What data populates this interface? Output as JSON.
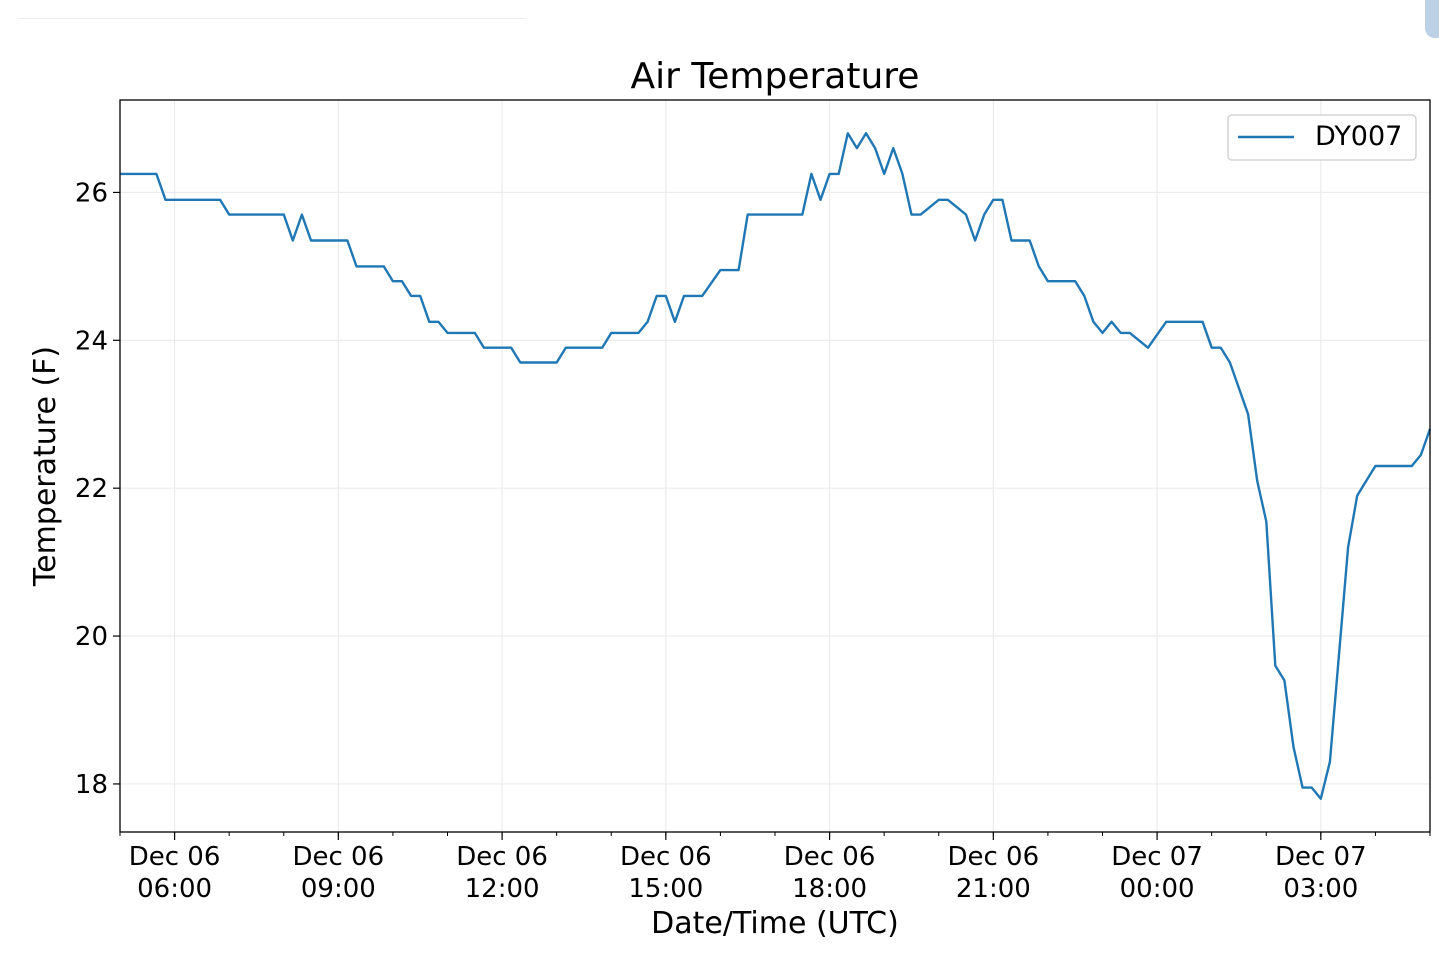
{
  "chart_data": {
    "type": "line",
    "title": "Air Temperature",
    "xlabel": "Date/Time (UTC)",
    "ylabel": "Temperature (F)",
    "xlim": [
      "2023-12-06T05:00",
      "2023-12-07T05:00"
    ],
    "ylim": [
      17.35,
      27.25
    ],
    "yticks": [
      18,
      20,
      22,
      24,
      26
    ],
    "xticks": [
      {
        "t": "2023-12-06T06:00",
        "label1": "Dec 06",
        "label2": "06:00"
      },
      {
        "t": "2023-12-06T09:00",
        "label1": "Dec 06",
        "label2": "09:00"
      },
      {
        "t": "2023-12-06T12:00",
        "label1": "Dec 06",
        "label2": "12:00"
      },
      {
        "t": "2023-12-06T15:00",
        "label1": "Dec 06",
        "label2": "15:00"
      },
      {
        "t": "2023-12-06T18:00",
        "label1": "Dec 06",
        "label2": "18:00"
      },
      {
        "t": "2023-12-06T21:00",
        "label1": "Dec 06",
        "label2": "21:00"
      },
      {
        "t": "2023-12-07T00:00",
        "label1": "Dec 07",
        "label2": "00:00"
      },
      {
        "t": "2023-12-07T03:00",
        "label1": "Dec 07",
        "label2": "03:00"
      }
    ],
    "grid": true,
    "legend_position": "top-right",
    "series": [
      {
        "name": "DY007",
        "color": "#1f77b4",
        "x": [
          "2023-12-06T05:00",
          "2023-12-06T05:40",
          "2023-12-06T05:50",
          "2023-12-06T06:50",
          "2023-12-06T07:00",
          "2023-12-06T08:00",
          "2023-12-06T08:10",
          "2023-12-06T08:20",
          "2023-12-06T08:30",
          "2023-12-06T09:10",
          "2023-12-06T09:20",
          "2023-12-06T09:50",
          "2023-12-06T10:00",
          "2023-12-06T10:10",
          "2023-12-06T10:20",
          "2023-12-06T10:30",
          "2023-12-06T10:40",
          "2023-12-06T10:50",
          "2023-12-06T11:00",
          "2023-12-06T11:30",
          "2023-12-06T11:40",
          "2023-12-06T12:10",
          "2023-12-06T12:20",
          "2023-12-06T13:00",
          "2023-12-06T13:10",
          "2023-12-06T13:50",
          "2023-12-06T14:00",
          "2023-12-06T14:30",
          "2023-12-06T14:40",
          "2023-12-06T14:50",
          "2023-12-06T15:00",
          "2023-12-06T15:10",
          "2023-12-06T15:20",
          "2023-12-06T15:40",
          "2023-12-06T16:00",
          "2023-12-06T16:20",
          "2023-12-06T16:30",
          "2023-12-06T17:30",
          "2023-12-06T17:40",
          "2023-12-06T17:50",
          "2023-12-06T18:00",
          "2023-12-06T18:10",
          "2023-12-06T18:20",
          "2023-12-06T18:30",
          "2023-12-06T18:40",
          "2023-12-06T18:50",
          "2023-12-06T19:00",
          "2023-12-06T19:10",
          "2023-12-06T19:20",
          "2023-12-06T19:30",
          "2023-12-06T19:40",
          "2023-12-06T20:00",
          "2023-12-06T20:10",
          "2023-12-06T20:30",
          "2023-12-06T20:40",
          "2023-12-06T20:50",
          "2023-12-06T21:00",
          "2023-12-06T21:10",
          "2023-12-06T21:20",
          "2023-12-06T21:40",
          "2023-12-06T21:50",
          "2023-12-06T22:00",
          "2023-12-06T22:30",
          "2023-12-06T22:40",
          "2023-12-06T22:50",
          "2023-12-06T23:00",
          "2023-12-06T23:10",
          "2023-12-06T23:20",
          "2023-12-06T23:30",
          "2023-12-06T23:50",
          "2023-12-07T00:10",
          "2023-12-07T00:50",
          "2023-12-07T01:00",
          "2023-12-07T01:10",
          "2023-12-07T01:20",
          "2023-12-07T01:40",
          "2023-12-07T01:50",
          "2023-12-07T02:00",
          "2023-12-07T02:10",
          "2023-12-07T02:20",
          "2023-12-07T02:30",
          "2023-12-07T02:40",
          "2023-12-07T02:50",
          "2023-12-07T03:00",
          "2023-12-07T03:10",
          "2023-12-07T03:30",
          "2023-12-07T03:40",
          "2023-12-07T03:50",
          "2023-12-07T04:00",
          "2023-12-07T04:10",
          "2023-12-07T04:40",
          "2023-12-07T04:50",
          "2023-12-07T05:00"
        ],
        "y": [
          26.25,
          26.25,
          25.9,
          25.9,
          25.7,
          25.7,
          25.35,
          25.7,
          25.35,
          25.35,
          25.0,
          25.0,
          24.8,
          24.8,
          24.6,
          24.6,
          24.25,
          24.25,
          24.1,
          24.1,
          23.9,
          23.9,
          23.7,
          23.7,
          23.9,
          23.9,
          24.1,
          24.1,
          24.25,
          24.6,
          24.6,
          24.25,
          24.6,
          24.6,
          24.95,
          24.95,
          25.7,
          25.7,
          26.25,
          25.9,
          26.25,
          26.25,
          26.8,
          26.6,
          26.8,
          26.6,
          26.25,
          26.6,
          26.25,
          25.7,
          25.7,
          25.9,
          25.9,
          25.7,
          25.35,
          25.7,
          25.9,
          25.9,
          25.35,
          25.35,
          25.0,
          24.8,
          24.8,
          24.6,
          24.25,
          24.1,
          24.25,
          24.1,
          24.1,
          23.9,
          24.25,
          24.25,
          23.9,
          23.9,
          23.7,
          23.0,
          22.1,
          21.55,
          19.6,
          19.4,
          18.5,
          17.95,
          17.95,
          17.8,
          18.3,
          21.2,
          21.9,
          22.1,
          22.3,
          22.3,
          22.3,
          22.45,
          22.8
        ]
      }
    ]
  }
}
